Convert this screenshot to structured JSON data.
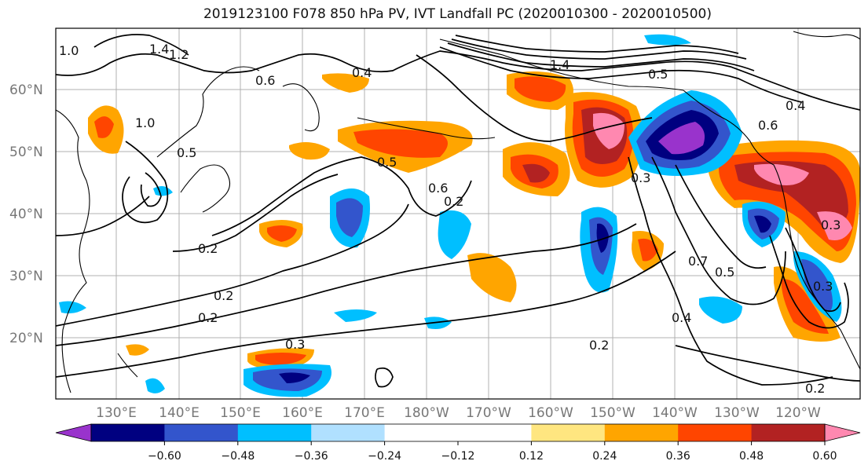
{
  "title": "2019123100 F078 850 hPa PV, IVT Landfall PC (2020010300 - 2020010500)",
  "lat_labels": [
    "60°N",
    "50°N",
    "40°N",
    "30°N",
    "20°N"
  ],
  "lon_labels": [
    "130°E",
    "140°E",
    "150°E",
    "160°E",
    "170°E",
    "180°W",
    "170°W",
    "160°W",
    "150°W",
    "140°W",
    "130°W",
    "120°W"
  ],
  "colorbar": {
    "colors": [
      "#9933cc",
      "#000080",
      "#3355cc",
      "#00bfff",
      "#b0e0ff",
      "#ffffff",
      "#ffffff",
      "#ffe680",
      "#ffa500",
      "#ff4500",
      "#b22222",
      "#ff88b0"
    ],
    "ticks": [
      "−0.60",
      "−0.48",
      "−0.36",
      "−0.24",
      "−0.12",
      "0.12",
      "0.24",
      "0.36",
      "0.48",
      "0.60"
    ]
  },
  "contour_labels": [
    "1.4",
    "1.2",
    "1.0",
    "0.6",
    "0.4",
    "1.0",
    "0.5",
    "0.5",
    "0.6",
    "0.2",
    "0.2",
    "0.2",
    "0.3",
    "0.2",
    "0.3",
    "0.7",
    "0.5",
    "0.4",
    "0.6",
    "0.4",
    "0.2",
    "1.4",
    "0.3",
    "0.3",
    "0.5",
    "0.2"
  ]
}
